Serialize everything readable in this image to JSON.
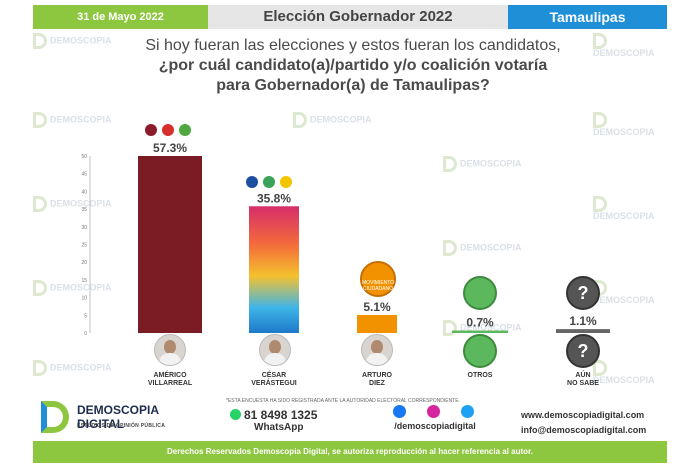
{
  "header": {
    "date": "31 de Mayo 2022",
    "title": "Elección Gobernador 2022",
    "state": "Tamaulipas"
  },
  "question": {
    "line1": "Si hoy fueran las elecciones y estos fueran los candidatos,",
    "line2": "¿por cuál candidato(a)/partido y/o coalición votaría",
    "line3": "para Gobernador(a) de Tamaulipas?"
  },
  "watermark": {
    "line1": "DEMOSCOPIA",
    "line2": "DIGITAL"
  },
  "chart_data": {
    "type": "bar",
    "categories": [
      "AMÉRICO VILLARREAL",
      "CÉSAR VERÁSTEGUI",
      "ARTURO DIEZ",
      "OTROS",
      "AÚN NO SABE"
    ],
    "values": [
      57.3,
      35.8,
      5.1,
      0.7,
      1.1
    ],
    "value_labels": [
      "57.3%",
      "35.8%",
      "5.1%",
      "0.7%",
      "1.1%"
    ],
    "ylim": [
      0,
      50
    ],
    "yticks": [
      "0",
      "5",
      "10",
      "15",
      "20",
      "25",
      "30",
      "35",
      "40",
      "45",
      "50"
    ],
    "colors": [
      "#7b1b24",
      "gradient",
      "#f39200",
      "#5cb85c",
      "#666666"
    ]
  },
  "candidates": [
    {
      "line1": "AMÉRICO",
      "line2": "VILLARREAL"
    },
    {
      "line1": "CÉSAR",
      "line2": "VERÁSTEGUI"
    },
    {
      "line1": "ARTURO",
      "line2": "DIEZ"
    },
    {
      "line1": "OTROS",
      "line2": ""
    },
    {
      "line1": "AÚN",
      "line2": "NO SABE"
    }
  ],
  "parties": {
    "bar1": [
      "morena",
      "PT",
      "PVEM"
    ],
    "bar2": [
      "PAN",
      "PRI",
      "PRD"
    ],
    "bar3_logo": "MOVIMIENTO CIUDADANO"
  },
  "footer": {
    "note": "*ESTA ENCUESTA HA SIDO REGISTRADA ANTE LA AUTORIDAD ELECTORAL CORRESPONDIENTE.",
    "logo_name1": "DEMOSCOPIA",
    "logo_name2": "DIGITAL",
    "logo_sub": "ESTUDIOS DE OPINIÓN PÚBLICA",
    "phone": "81 8498 1325",
    "whatsapp": "WhatsApp",
    "social_handle": "/demoscopiadigital",
    "website": "www.demoscopiadigital.com",
    "email": "info@demoscopiadigital.com",
    "rights": "Derechos Reservados Demoscopia Digital, se autoriza reproducción al hacer referencia al autor."
  },
  "colors": {
    "green": "#8dc63f",
    "blue": "#1f8fd8",
    "gray": "#e6e6e6"
  }
}
